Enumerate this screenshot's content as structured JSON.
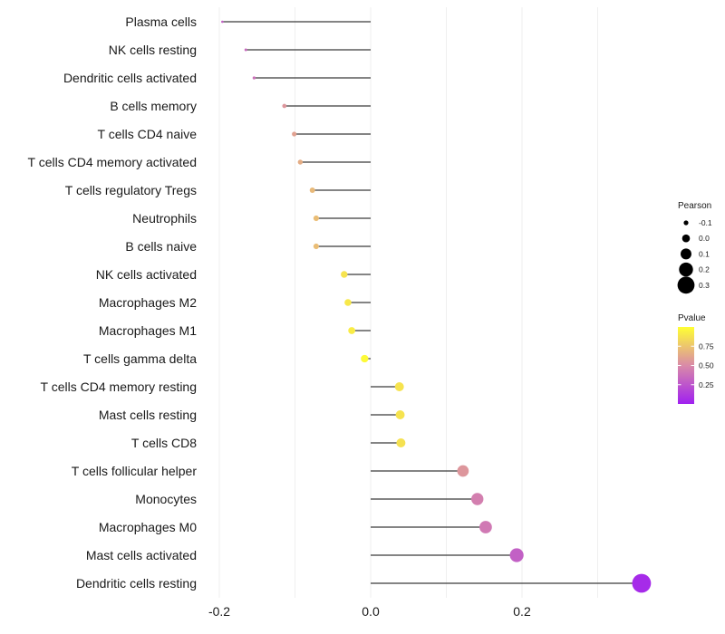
{
  "chart_data": {
    "type": "lollipop",
    "title": "",
    "xlabel": "",
    "ylabel": "",
    "xlim": [
      -0.2,
      0.35
    ],
    "x_ticks": [
      -0.2,
      0.0,
      0.2
    ],
    "x_tick_labels": [
      "-0.2",
      "0.0",
      "0.2"
    ],
    "baseline": 0.0,
    "categories": [
      "Plasma cells",
      "NK cells resting",
      "Dendritic cells activated",
      "B cells memory",
      "T cells CD4 naive",
      "T cells CD4 memory activated",
      "T cells regulatory  Tregs ",
      "Neutrophils",
      "B cells naive",
      "NK cells activated",
      "Macrophages M2",
      "Macrophages M1",
      "T cells gamma delta",
      "T cells CD4 memory resting",
      "Mast cells resting",
      "T cells CD8",
      "T cells follicular helper",
      "Monocytes",
      "Macrophages M0",
      "Mast cells activated",
      "Dendritic cells resting"
    ],
    "values": [
      -0.196,
      -0.165,
      -0.154,
      -0.114,
      -0.101,
      -0.093,
      -0.077,
      -0.072,
      -0.072,
      -0.035,
      -0.03,
      -0.025,
      -0.008,
      0.038,
      0.039,
      0.04,
      0.122,
      0.141,
      0.152,
      0.193,
      0.358
    ],
    "pvalues": [
      0.3,
      0.35,
      0.38,
      0.55,
      0.6,
      0.65,
      0.7,
      0.72,
      0.72,
      0.88,
      0.9,
      0.92,
      0.98,
      0.88,
      0.88,
      0.87,
      0.55,
      0.45,
      0.42,
      0.3,
      0.05
    ],
    "size_legend": {
      "title": "Pearson",
      "values": [
        -0.1,
        0.0,
        0.1,
        0.2,
        0.3
      ],
      "labels": [
        "-0.1",
        "0.0",
        "0.1",
        "0.2",
        "0.3"
      ]
    },
    "color_legend": {
      "title": "Pvalue",
      "range": [
        0.0,
        1.0
      ],
      "tick_values": [
        0.75,
        0.5,
        0.25
      ],
      "tick_labels": [
        "0.75",
        "0.50",
        "0.25"
      ],
      "low_color": "#a020f0",
      "mid_color": "#d98aa8",
      "high_color": "#ffff33"
    },
    "grid": true,
    "legend_position": "right"
  }
}
